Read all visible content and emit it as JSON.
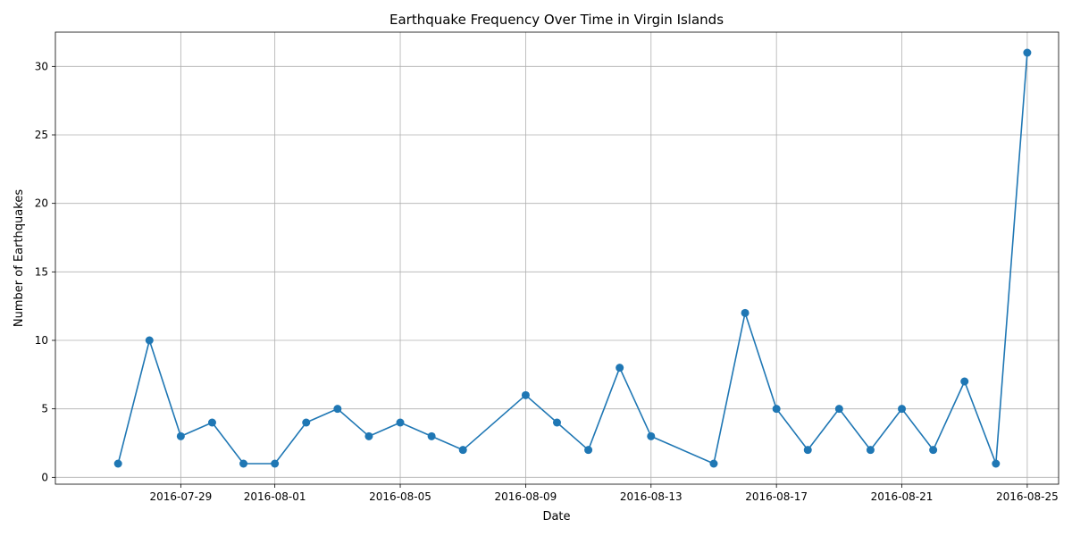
{
  "chart_data": {
    "type": "line",
    "title": "Earthquake Frequency Over Time in Virgin Islands",
    "xlabel": "Date",
    "ylabel": "Number of Earthquakes",
    "grid": true,
    "x_tick_labels": [
      "2016-07-29",
      "2016-08-01",
      "2016-08-05",
      "2016-08-09",
      "2016-08-13",
      "2016-08-17",
      "2016-08-21",
      "2016-08-25"
    ],
    "y_ticks": [
      0,
      5,
      10,
      15,
      20,
      25,
      30
    ],
    "xlim": [
      "2016-07-25",
      "2016-08-26"
    ],
    "ylim": [
      -0.5,
      32.5
    ],
    "series": [
      {
        "color": "#1f77b4",
        "marker": "circle",
        "points": [
          {
            "x": "2016-07-27",
            "y": 1
          },
          {
            "x": "2016-07-28",
            "y": 10
          },
          {
            "x": "2016-07-29",
            "y": 3
          },
          {
            "x": "2016-07-30",
            "y": 4
          },
          {
            "x": "2016-07-31",
            "y": 1
          },
          {
            "x": "2016-08-01",
            "y": 1
          },
          {
            "x": "2016-08-02",
            "y": 4
          },
          {
            "x": "2016-08-03",
            "y": 5
          },
          {
            "x": "2016-08-04",
            "y": 3
          },
          {
            "x": "2016-08-05",
            "y": 4
          },
          {
            "x": "2016-08-06",
            "y": 3
          },
          {
            "x": "2016-08-07",
            "y": 2
          },
          {
            "x": "2016-08-09",
            "y": 6
          },
          {
            "x": "2016-08-10",
            "y": 4
          },
          {
            "x": "2016-08-11",
            "y": 2
          },
          {
            "x": "2016-08-12",
            "y": 8
          },
          {
            "x": "2016-08-13",
            "y": 3
          },
          {
            "x": "2016-08-15",
            "y": 1
          },
          {
            "x": "2016-08-16",
            "y": 12
          },
          {
            "x": "2016-08-17",
            "y": 5
          },
          {
            "x": "2016-08-18",
            "y": 2
          },
          {
            "x": "2016-08-19",
            "y": 5
          },
          {
            "x": "2016-08-20",
            "y": 2
          },
          {
            "x": "2016-08-21",
            "y": 5
          },
          {
            "x": "2016-08-22",
            "y": 2
          },
          {
            "x": "2016-08-23",
            "y": 7
          },
          {
            "x": "2016-08-24",
            "y": 1
          },
          {
            "x": "2016-08-25",
            "y": 31
          }
        ]
      }
    ]
  }
}
